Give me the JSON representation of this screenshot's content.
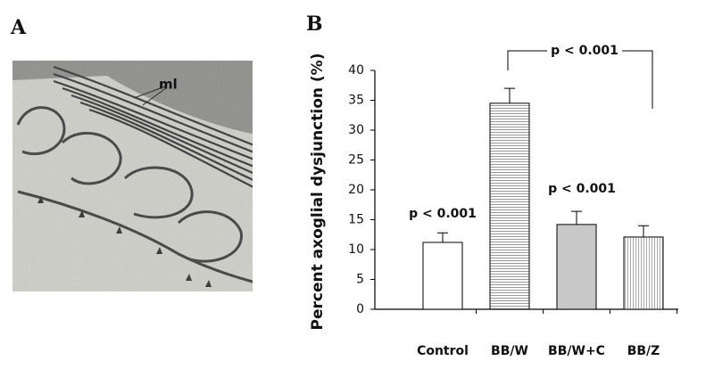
{
  "panel_a": {
    "label": "A",
    "annotation": "ml"
  },
  "chart_data": {
    "type": "bar",
    "panel_label": "B",
    "ylabel": "Percent axoglial dysjunction (%)",
    "categories": [
      "Control",
      "BB/W",
      "BB/W+C",
      "BB/Z"
    ],
    "values": [
      11.2,
      34.5,
      14.2,
      12.1
    ],
    "errors": [
      1.6,
      2.5,
      2.2,
      1.9
    ],
    "colors": [
      "#ffffff",
      "#ffffff",
      "#c8c8c8",
      "#ffffff"
    ],
    "hatch": [
      "none",
      "horizontal",
      "none",
      "vertical"
    ],
    "ylim": [
      0,
      40
    ],
    "yticks": [
      0,
      5,
      10,
      15,
      20,
      25,
      30,
      35,
      40
    ],
    "annotations": [
      "p < 0.001",
      "p < 0.001",
      "p < 0.001"
    ]
  }
}
